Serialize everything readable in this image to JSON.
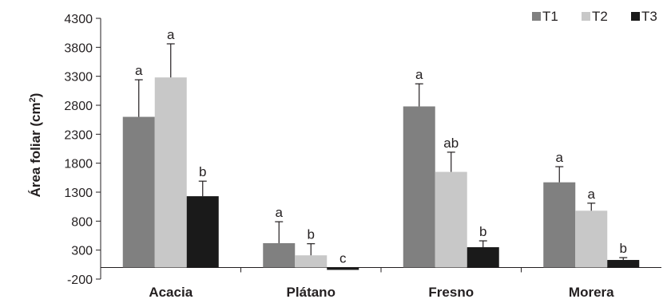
{
  "chart_data": {
    "type": "bar",
    "ylabel": "Área foliar (cm",
    "ylabel_sup": "2",
    "ylabel_close": ")",
    "ylim": [
      -200,
      4300
    ],
    "yticks": [
      -200,
      300,
      800,
      1300,
      1800,
      2300,
      2800,
      3300,
      3800,
      4300
    ],
    "categories": [
      "Acacia",
      "Plátano",
      "Fresno",
      "Morera"
    ],
    "legend_position": "top-right",
    "grid": false,
    "series": [
      {
        "name": "T1",
        "color": "#808080",
        "values": [
          2600,
          420,
          2780,
          1470
        ],
        "errors": [
          640,
          370,
          390,
          270
        ],
        "labels": [
          "a",
          "a",
          "a",
          "a"
        ]
      },
      {
        "name": "T2",
        "color": "#c8c8c8",
        "values": [
          3280,
          210,
          1650,
          980
        ],
        "errors": [
          580,
          200,
          340,
          130
        ],
        "labels": [
          "a",
          "b",
          "ab",
          "a"
        ]
      },
      {
        "name": "T3",
        "color": "#1a1a1a",
        "values": [
          1230,
          -30,
          350,
          130
        ],
        "errors": [
          260,
          0,
          110,
          40
        ],
        "labels": [
          "b",
          "c",
          "b",
          "b"
        ]
      }
    ]
  }
}
